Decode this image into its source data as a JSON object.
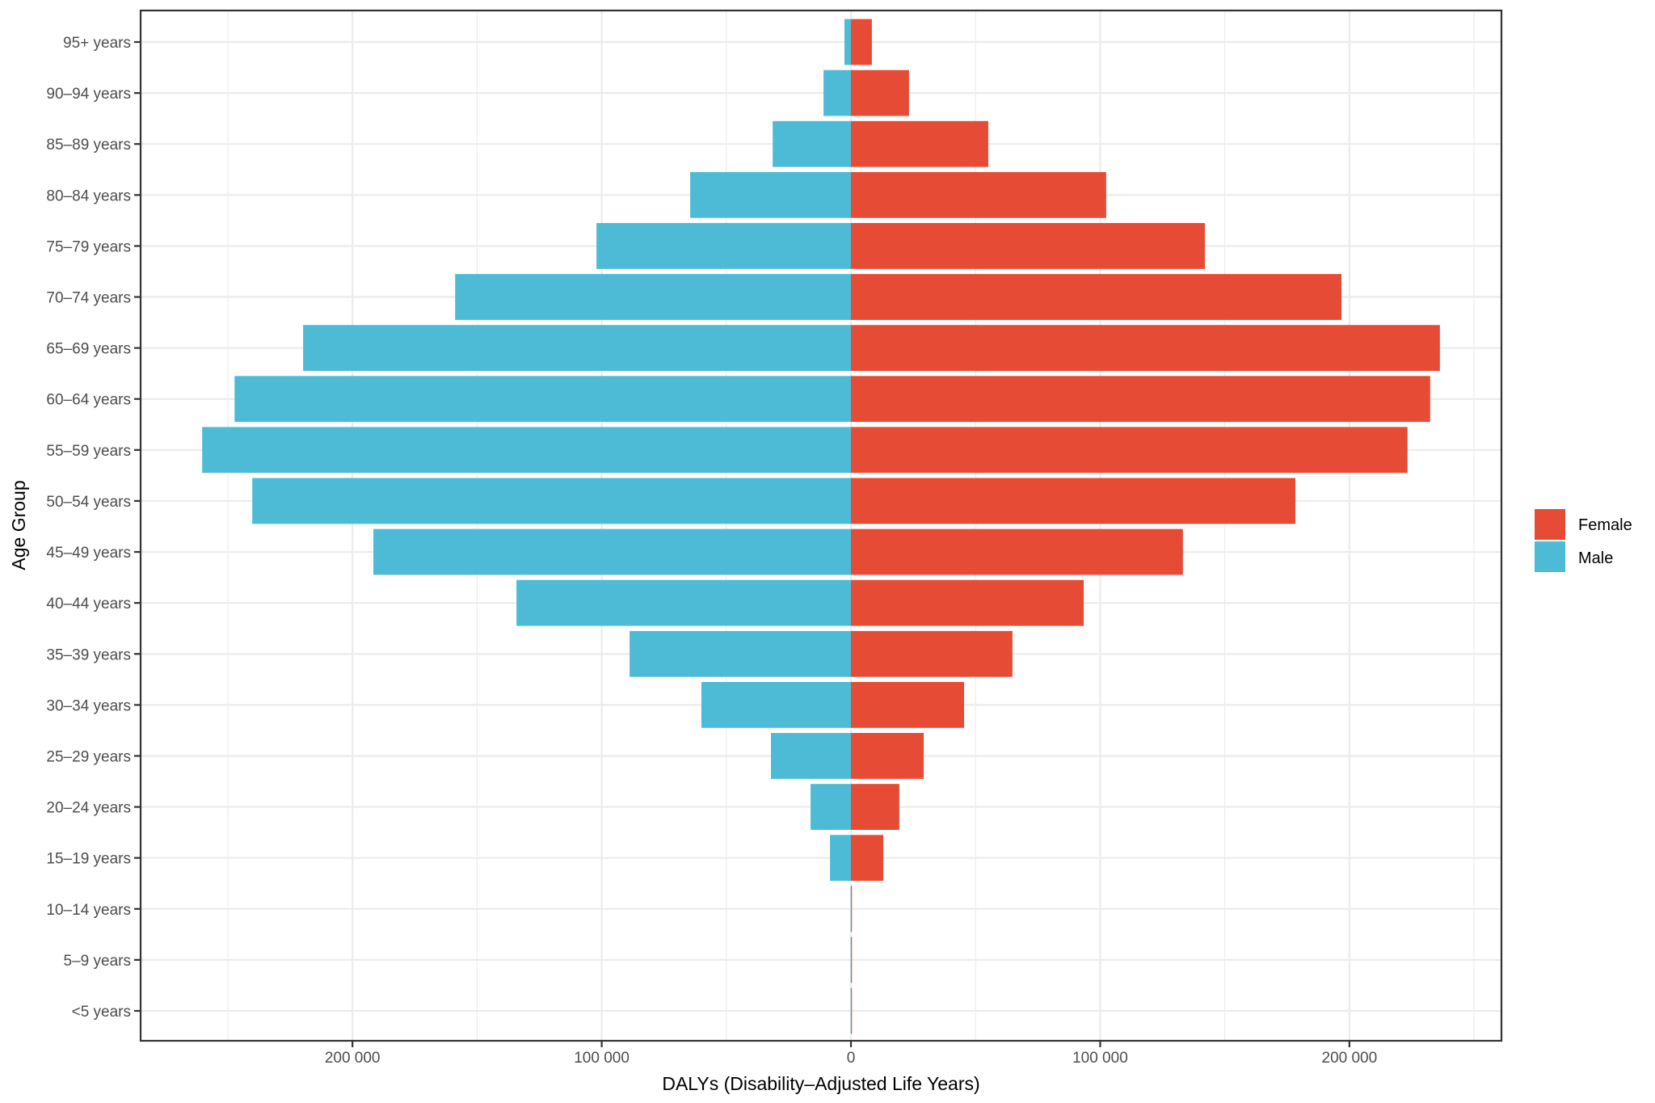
{
  "chart_data": {
    "type": "bar",
    "orientation": "horizontal",
    "subtype": "population-pyramid",
    "title": "",
    "xlabel": "DALYs (Disability–Adjusted Life Years)",
    "ylabel": "Age Group",
    "xlim": [
      -285000,
      261000
    ],
    "x_major_ticks": [
      -200000,
      -100000,
      0,
      100000,
      200000
    ],
    "x_tick_labels": [
      "200 000",
      "100 000",
      "0",
      "100 000",
      "200 000"
    ],
    "x_minor_ticks": [
      -250000,
      -150000,
      -50000,
      50000,
      150000,
      250000
    ],
    "grid": true,
    "legend_position": "right",
    "categories": [
      "<5 years",
      "5–9 years",
      "10–14 years",
      "15–19 years",
      "20–24 years",
      "25–29 years",
      "30–34 years",
      "35–39 years",
      "40–44 years",
      "45–49 years",
      "50–54 years",
      "55–59 years",
      "60–64 years",
      "65–69 years",
      "70–74 years",
      "75–79 years",
      "80–84 years",
      "85–89 years",
      "90–94 years",
      "95+ years"
    ],
    "series": [
      {
        "name": "Female",
        "color": "#E64B35",
        "direction": "positive",
        "values": [
          400,
          400,
          400,
          13000,
          19400,
          29200,
          45400,
          64800,
          93400,
          133200,
          178300,
          223300,
          232400,
          236300,
          196800,
          142000,
          102400,
          55100,
          23300,
          8400
        ]
      },
      {
        "name": "Male",
        "color": "#4DBBD5",
        "direction": "negative",
        "values": [
          100,
          100,
          100,
          8400,
          16200,
          32100,
          60000,
          88800,
          134200,
          191600,
          240200,
          260300,
          247300,
          219800,
          158800,
          102100,
          64500,
          31400,
          11000,
          2600
        ]
      }
    ],
    "legend": [
      {
        "label": "Female",
        "color": "#E64B35"
      },
      {
        "label": "Male",
        "color": "#4DBBD5"
      }
    ]
  }
}
